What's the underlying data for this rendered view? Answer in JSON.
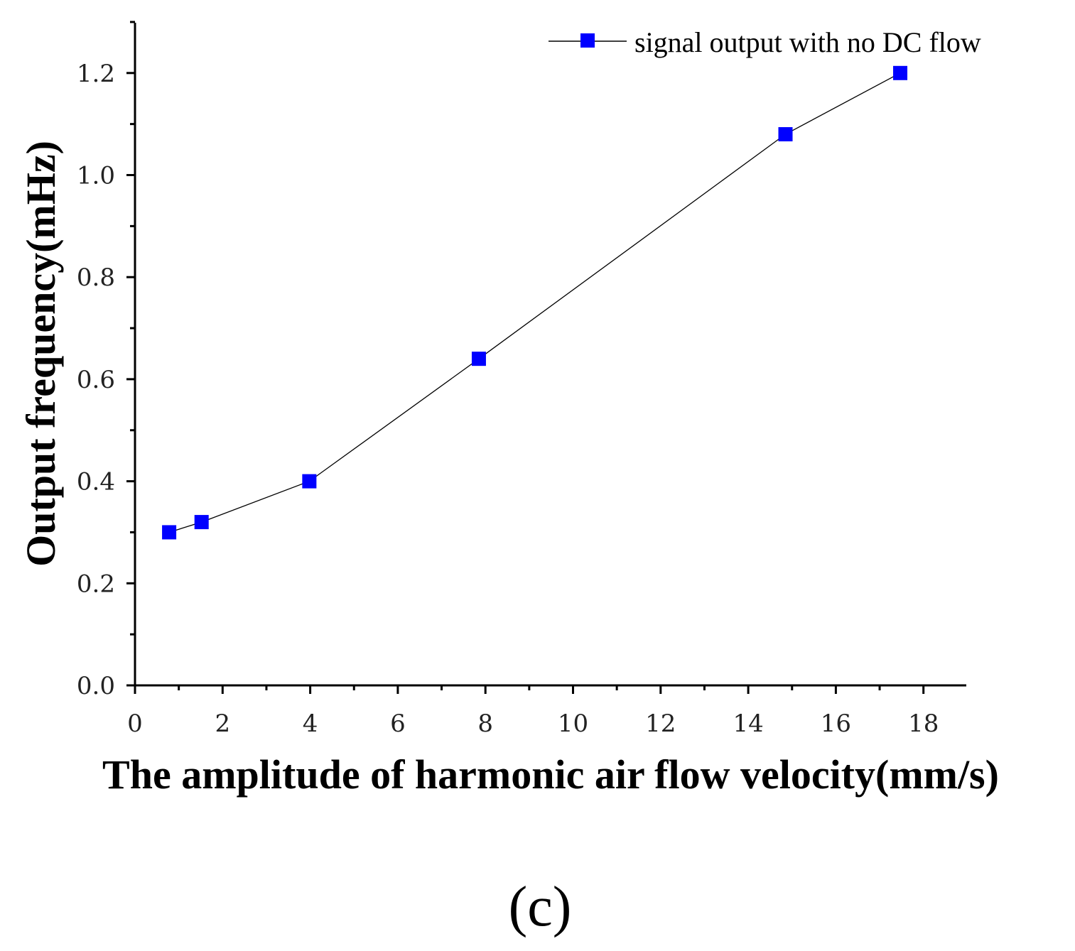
{
  "chart_data": {
    "type": "line",
    "xlabel": "The amplitude of harmonic air flow velocity(mm/s)",
    "ylabel": "Output frequency(mHz)",
    "xlim": [
      0,
      19
    ],
    "ylim": [
      0,
      1.3
    ],
    "x_ticks": [
      "0",
      "2",
      "4",
      "6",
      "8",
      "10",
      "12",
      "14",
      "16",
      "18"
    ],
    "y_ticks": [
      "0.0",
      "0.2",
      "0.4",
      "0.6",
      "0.8",
      "1.0",
      "1.2"
    ],
    "legend_position": "top-right",
    "series": [
      {
        "name": "signal output with no DC flow",
        "color": "#0000ff",
        "line_color": "#000000",
        "marker": "square",
        "x": [
          0.78,
          1.52,
          3.98,
          7.85,
          14.85,
          17.47
        ],
        "y": [
          0.3,
          0.32,
          0.4,
          0.64,
          1.08,
          1.2
        ]
      }
    ]
  },
  "panel_label": "(c)"
}
